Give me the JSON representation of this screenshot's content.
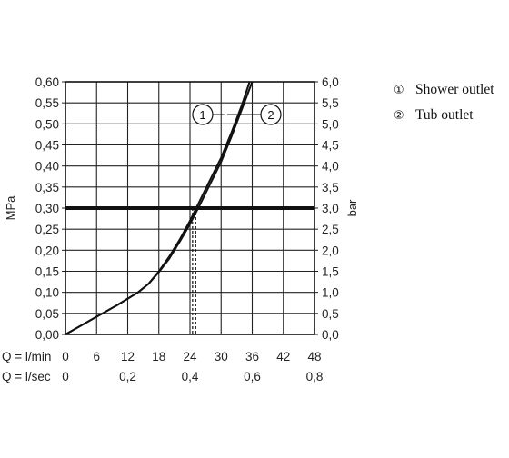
{
  "chart_data": {
    "type": "line",
    "title": "",
    "y_left": {
      "label": "MPa",
      "min": 0,
      "max": 0.6,
      "step": 0.05,
      "tick_labels": [
        "0,00",
        "0,05",
        "0,10",
        "0,15",
        "0,20",
        "0,25",
        "0,30",
        "0,35",
        "0,40",
        "0,45",
        "0,50",
        "0,55",
        "0,60"
      ]
    },
    "y_right": {
      "label": "bar",
      "min": 0,
      "max": 6.0,
      "step": 0.5,
      "tick_labels": [
        "0,0",
        "0,5",
        "1,0",
        "1,5",
        "2,0",
        "2,5",
        "3,0",
        "3,5",
        "4,0",
        "4,5",
        "5,0",
        "5,5",
        "6,0"
      ]
    },
    "x_primary": {
      "label": "Q = l/min",
      "min": 0,
      "max": 48,
      "step": 6,
      "tick_labels": [
        "0",
        "6",
        "12",
        "18",
        "24",
        "30",
        "36",
        "42",
        "48"
      ]
    },
    "x_secondary": {
      "label": "Q = l/sec",
      "min": 0,
      "max": 0.8,
      "step": 0.2,
      "tick_labels": [
        "0",
        "0,2",
        "0,4",
        "0,6",
        "0,8"
      ]
    },
    "grid": true,
    "reference_line": {
      "y": 0.3,
      "emphasis": "bold"
    },
    "series": [
      {
        "name": "Shower outlet",
        "marker": "①",
        "callout": "1",
        "x": [
          0,
          5,
          10,
          14,
          16,
          18,
          20,
          22,
          24,
          26,
          28,
          30,
          32,
          34,
          35.5
        ],
        "y": [
          0,
          0.035,
          0.07,
          0.1,
          0.12,
          0.15,
          0.185,
          0.225,
          0.27,
          0.32,
          0.37,
          0.42,
          0.48,
          0.545,
          0.6
        ],
        "drop_x": 24.5
      },
      {
        "name": "Tub outlet",
        "marker": "②",
        "callout": "2",
        "x": [
          0,
          5,
          10,
          14,
          16,
          18,
          20,
          22,
          24,
          26,
          28,
          30,
          32,
          34,
          36
        ],
        "y": [
          0,
          0.035,
          0.07,
          0.1,
          0.12,
          0.148,
          0.18,
          0.22,
          0.262,
          0.31,
          0.36,
          0.41,
          0.47,
          0.535,
          0.6
        ],
        "drop_x": 25.1
      }
    ],
    "legend": {
      "position": "top-right"
    }
  }
}
